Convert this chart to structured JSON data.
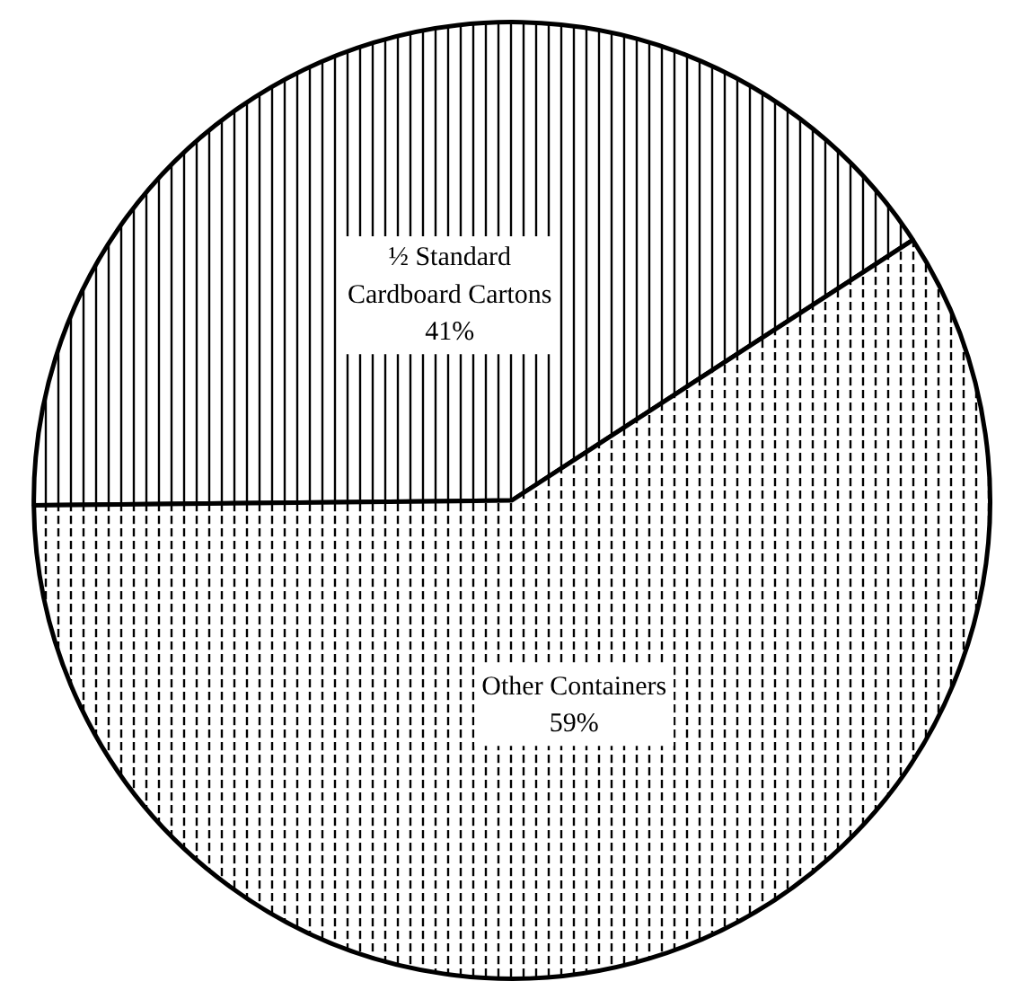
{
  "chart_data": {
    "type": "pie",
    "categories": [
      "½ Standard Cardboard Cartons",
      "Other Containers"
    ],
    "values": [
      41,
      59
    ],
    "colors": [
      "#ffffff",
      "#ffffff"
    ],
    "value_labels": [
      "41%",
      "59%"
    ]
  }
}
